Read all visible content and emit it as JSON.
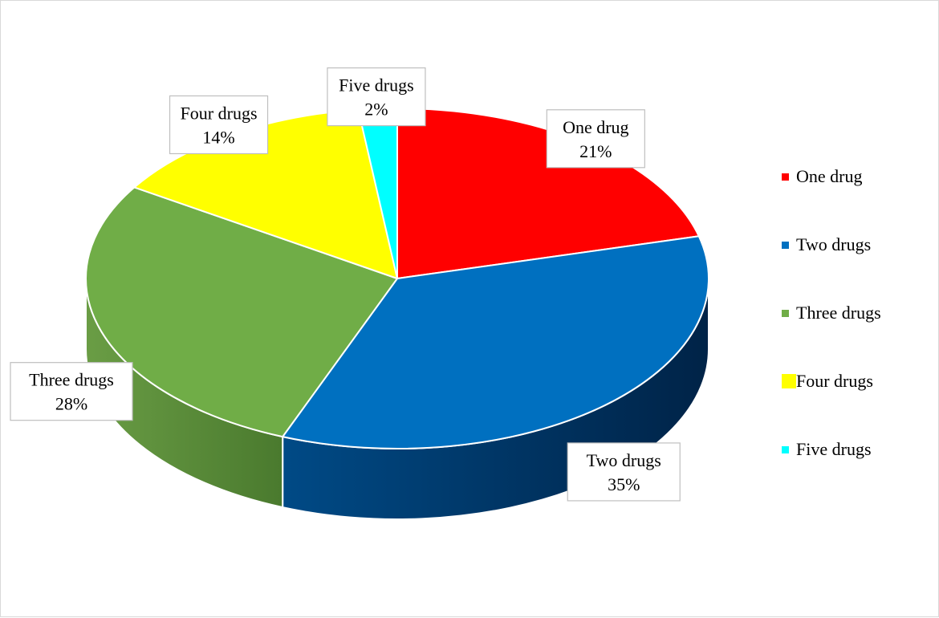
{
  "chart_data": {
    "type": "pie",
    "style": "3d",
    "title": "",
    "slices": [
      {
        "label": "One drug",
        "value": 21,
        "value_label": "21%",
        "color": "#FF0000"
      },
      {
        "label": "Two drugs",
        "value": 35,
        "value_label": "35%",
        "color": "#0070C0"
      },
      {
        "label": "Three drugs",
        "value": 28,
        "value_label": "28%",
        "color": "#70AD47"
      },
      {
        "label": "Four drugs",
        "value": 14,
        "value_label": "14%",
        "color": "#FFFF00"
      },
      {
        "label": "Five drugs",
        "value": 2,
        "value_label": "2%",
        "color": "#00FFFF"
      }
    ],
    "legend": {
      "position": "right",
      "entries": [
        "One drug",
        "Two drugs",
        "Three drugs",
        "Four drugs",
        "Five drugs"
      ]
    }
  }
}
